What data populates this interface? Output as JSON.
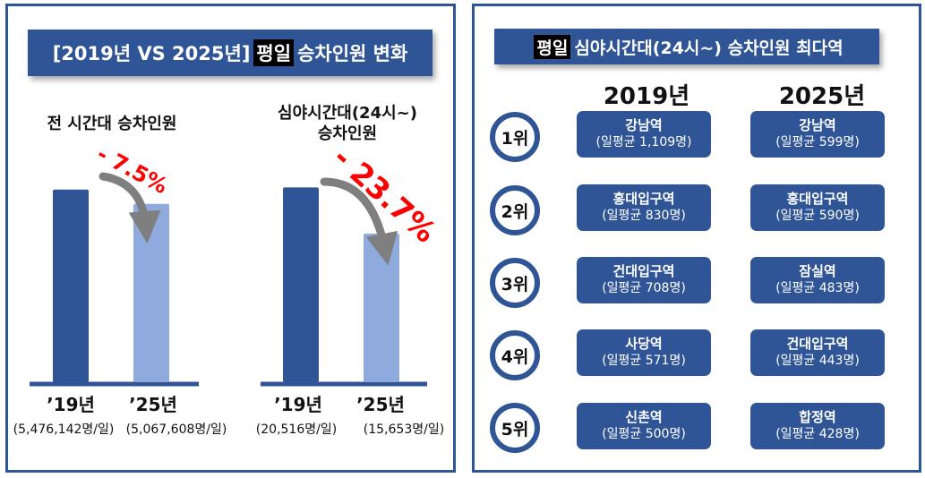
{
  "left": {
    "title_prefix": "[2019년 VS 2025년]",
    "title_highlight": "평일",
    "title_suffix": "승차인원 변화"
  },
  "right": {
    "title_highlight": "평일",
    "title_suffix": "심야시간대(24시~) 승차인원 최다역",
    "year_2019": "2019년",
    "year_2025": "2025년",
    "ranks": [
      {
        "label": "1위",
        "y2019": {
          "station": "강남역",
          "avg": "(일평균 1,109명)"
        },
        "y2025": {
          "station": "강남역",
          "avg": "(일평균 599명)"
        }
      },
      {
        "label": "2위",
        "y2019": {
          "station": "홍대입구역",
          "avg": "(일평균 830명)"
        },
        "y2025": {
          "station": "홍대입구역",
          "avg": "(일평균 590명)"
        }
      },
      {
        "label": "3위",
        "y2019": {
          "station": "건대입구역",
          "avg": "(일평균 708명)"
        },
        "y2025": {
          "station": "잠실역",
          "avg": "(일평균 483명)"
        }
      },
      {
        "label": "4위",
        "y2019": {
          "station": "사당역",
          "avg": "(일평균 571명)"
        },
        "y2025": {
          "station": "건대입구역",
          "avg": "(일평균 443명)"
        }
      },
      {
        "label": "5위",
        "y2019": {
          "station": "신촌역",
          "avg": "(일평균 500명)"
        },
        "y2025": {
          "station": "합정역",
          "avg": "(일평균 428명)"
        }
      }
    ]
  },
  "colors": {
    "primary": "#2f5597",
    "bar_2019": "#2f5597",
    "bar_2025": "#8faadc",
    "change": "#ff0000",
    "arrow": "#7f7f7f"
  },
  "chart_data": [
    {
      "type": "bar",
      "title": "전 시간대 승차인원",
      "categories": [
        "’19년",
        "’25년"
      ],
      "values": [
        5476142,
        5067608
      ],
      "value_labels": [
        "(5,476,142명/일)",
        "(5,067,608명/일)"
      ],
      "change_label": "- 7.5%",
      "ylim": [
        0,
        5800000
      ]
    },
    {
      "type": "bar",
      "title": "심야시간대(24시~)\n승차인원",
      "title_lines": [
        "심야시간대(24시~)",
        "승차인원"
      ],
      "categories": [
        "’19년",
        "’25년"
      ],
      "values": [
        20516,
        15653
      ],
      "value_labels": [
        "(20,516명/일)",
        "(15,653명/일)"
      ],
      "change_label": "- 23.7%",
      "ylim": [
        0,
        21500
      ]
    }
  ]
}
